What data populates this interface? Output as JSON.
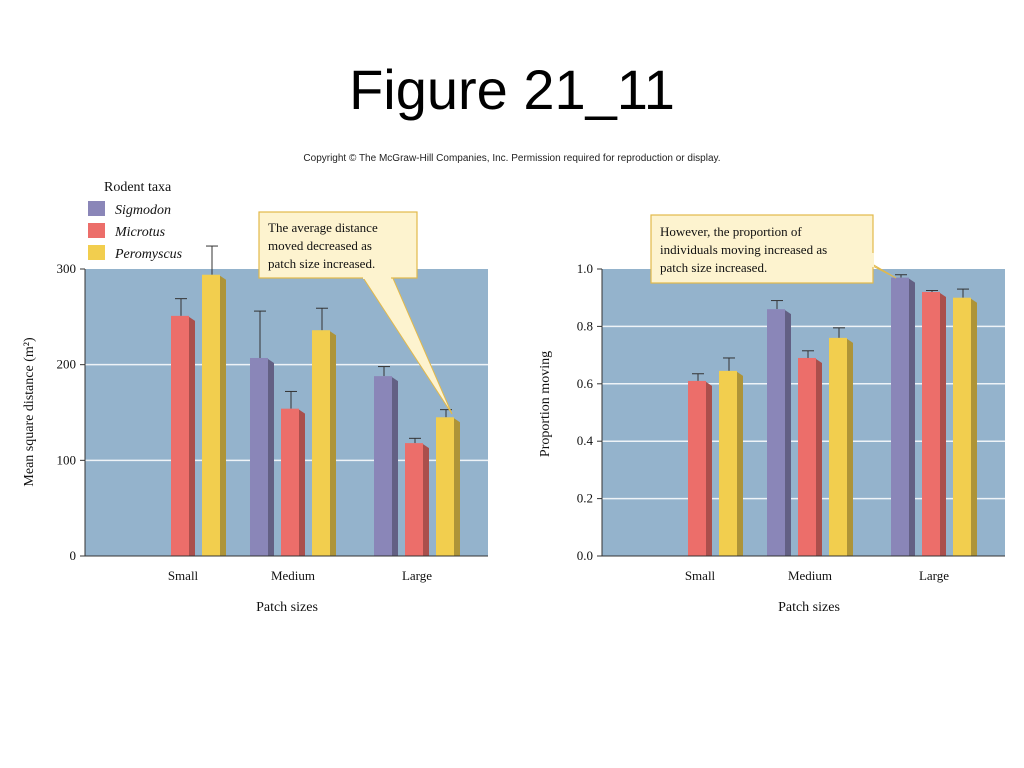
{
  "slide": {
    "title": "Figure 21_11",
    "copyright": "Copyright © The McGraw-Hill Companies, Inc. Permission required for reproduction or display."
  },
  "legend": {
    "title": "Rodent taxa",
    "items": [
      "Sigmodon",
      "Microtus",
      "Peromyscus"
    ]
  },
  "colors": {
    "Sigmodon": "#8a86b8",
    "Microtus": "#ec6e6a",
    "Peromyscus": "#f2ce4e",
    "plot_background": "#94b3cc",
    "callout_fill": "#fdf3cf",
    "callout_border": "#e2b94a"
  },
  "chart_data": [
    {
      "type": "bar",
      "categories": [
        "Small",
        "Medium",
        "Large"
      ],
      "series": [
        {
          "name": "Sigmodon",
          "values": [
            null,
            207,
            188
          ],
          "errors": [
            null,
            49,
            10
          ]
        },
        {
          "name": "Microtus",
          "values": [
            251,
            154,
            118
          ],
          "errors": [
            18,
            18,
            5
          ]
        },
        {
          "name": "Peromyscus",
          "values": [
            294,
            236,
            145
          ],
          "errors": [
            30,
            23,
            8
          ]
        }
      ],
      "xlabel": "Patch sizes",
      "ylabel": "Mean square distance (m²)",
      "ylim": [
        0,
        300
      ],
      "yticks": [
        "0",
        "100",
        "200",
        "300"
      ],
      "grid": true,
      "annotation": "The average distance moved decreased as patch size increased."
    },
    {
      "type": "bar",
      "categories": [
        "Small",
        "Medium",
        "Large"
      ],
      "series": [
        {
          "name": "Sigmodon",
          "values": [
            null,
            0.86,
            0.97
          ],
          "errors": [
            null,
            0.03,
            0.01
          ]
        },
        {
          "name": "Microtus",
          "values": [
            0.61,
            0.69,
            0.92
          ],
          "errors": [
            0.025,
            0.025,
            0.005
          ]
        },
        {
          "name": "Peromyscus",
          "values": [
            0.645,
            0.76,
            0.9
          ],
          "errors": [
            0.045,
            0.035,
            0.03
          ]
        }
      ],
      "xlabel": "Patch sizes",
      "ylabel": "Proportion moving",
      "ylim": [
        0,
        1.0
      ],
      "yticks": [
        "0.0",
        "0.2",
        "0.4",
        "0.6",
        "0.8",
        "1.0"
      ],
      "grid": true,
      "annotation": "However, the proportion of individuals moving increased as patch size increased."
    }
  ]
}
